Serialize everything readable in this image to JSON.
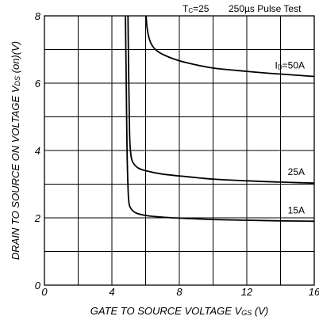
{
  "chart_data": {
    "type": "line",
    "title": "",
    "xlabel": "GATE TO SOURCE VOLTAGE",
    "xlabel_symbol": "V",
    "xlabel_symbol_sub": "GS",
    "xlabel_unit": "(V)",
    "ylabel": "DRAIN TO SOURCE ON VOLTAGE",
    "ylabel_symbol": "V",
    "ylabel_symbol_sub": "DS",
    "ylabel_unit": "(on)(V)",
    "xlim": [
      0,
      16
    ],
    "ylim": [
      0,
      8
    ],
    "x_ticks": [
      0,
      4,
      8,
      12,
      16
    ],
    "y_ticks": [
      0,
      2,
      4,
      6,
      8
    ],
    "x_grid_step": 2,
    "y_grid_step": 1,
    "grid": true,
    "notes": {
      "tc_symbol": "T",
      "tc_sub": "C",
      "tc_value": "=25",
      "pulse": "250µs Pulse Test"
    },
    "series": [
      {
        "name": "I",
        "name_sub": "D",
        "name_suffix": "=50A",
        "points": [
          [
            6.0,
            8.2
          ],
          [
            6.1,
            7.6
          ],
          [
            6.3,
            7.2
          ],
          [
            6.7,
            6.95
          ],
          [
            7.5,
            6.75
          ],
          [
            8.5,
            6.6
          ],
          [
            10,
            6.45
          ],
          [
            12,
            6.35
          ],
          [
            14,
            6.27
          ],
          [
            16,
            6.2
          ]
        ]
      },
      {
        "name": "25A",
        "points": [
          [
            4.95,
            8.2
          ],
          [
            5.0,
            6.0
          ],
          [
            5.05,
            4.5
          ],
          [
            5.1,
            4.0
          ],
          [
            5.2,
            3.7
          ],
          [
            5.5,
            3.5
          ],
          [
            6.0,
            3.4
          ],
          [
            7.0,
            3.3
          ],
          [
            8.5,
            3.22
          ],
          [
            10,
            3.15
          ],
          [
            12,
            3.1
          ],
          [
            14,
            3.06
          ],
          [
            16,
            3.03
          ]
        ]
      },
      {
        "name": "15A",
        "points": [
          [
            4.8,
            8.2
          ],
          [
            4.85,
            6.0
          ],
          [
            4.9,
            4.0
          ],
          [
            4.95,
            3.0
          ],
          [
            5.0,
            2.5
          ],
          [
            5.1,
            2.3
          ],
          [
            5.4,
            2.15
          ],
          [
            6.0,
            2.07
          ],
          [
            7.0,
            2.02
          ],
          [
            8.5,
            1.98
          ],
          [
            10,
            1.95
          ],
          [
            12,
            1.93
          ],
          [
            14,
            1.91
          ],
          [
            16,
            1.9
          ]
        ]
      }
    ]
  }
}
